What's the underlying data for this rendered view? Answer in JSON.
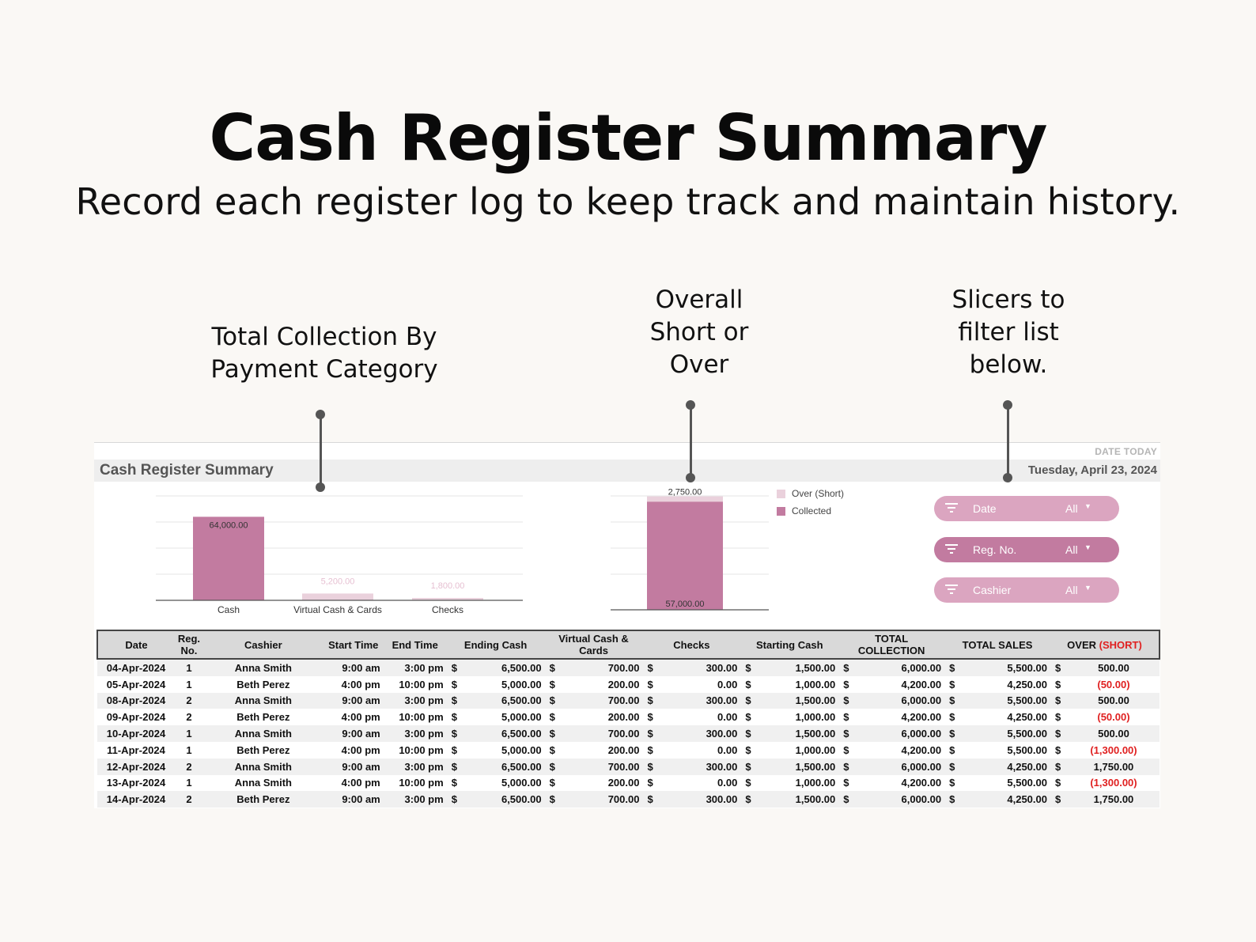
{
  "hero": {
    "title": "Cash Register Summary",
    "subtitle": "Record each register log to keep track and maintain history."
  },
  "callouts": {
    "collection": [
      "Total Collection By",
      "Payment Category"
    ],
    "overall": [
      "Overall",
      "Short or",
      "Over"
    ],
    "slicers": [
      "Slicers to",
      "filter list",
      "below."
    ]
  },
  "sheet": {
    "title": "Cash Register Summary",
    "date_caption": "DATE TODAY",
    "date_value": "Tuesday, April 23, 2024"
  },
  "colors": {
    "collected": "#c27ba0",
    "over_short": "#ead1dc",
    "light_bar": "#ead1dc",
    "slicer_light": "#dba5c0",
    "slicer_dark": "#c27ba0",
    "negative": "#e02020"
  },
  "chart_data": [
    {
      "type": "bar",
      "title": "",
      "categories": [
        "Cash",
        "Virtual Cash & Cards",
        "Checks"
      ],
      "values": [
        64000,
        5200,
        1800
      ],
      "value_labels": [
        "64,000.00",
        "5,200.00",
        "1,800.00"
      ],
      "ylim": [
        0,
        80000
      ],
      "grid": true
    },
    {
      "type": "bar",
      "stacked": true,
      "title": "",
      "categories": [
        ""
      ],
      "series": [
        {
          "name": "Collected",
          "values": [
            57000
          ],
          "label": "57,000.00"
        },
        {
          "name": "Over (Short)",
          "values": [
            2750
          ],
          "label": "2,750.00"
        }
      ],
      "ylim": [
        0,
        60000
      ],
      "legend": "right",
      "grid": true
    }
  ],
  "slicers": [
    {
      "label": "Date",
      "value": "All",
      "icon": "filter-icon"
    },
    {
      "label": "Reg. No.",
      "value": "All",
      "icon": "filter-icon"
    },
    {
      "label": "Cashier",
      "value": "All",
      "icon": "filter-icon"
    }
  ],
  "table": {
    "headers": {
      "date": "Date",
      "reg": "Reg. No.",
      "cashier": "Cashier",
      "start": "Start Time",
      "end": "End Time",
      "ending_cash": "Ending Cash",
      "virtual": "Virtual Cash & Cards",
      "checks": "Checks",
      "starting_cash": "Starting Cash",
      "total_collection": "TOTAL COLLECTION",
      "total_sales": "TOTAL SALES",
      "over": "OVER",
      "short": "(SHORT)"
    },
    "currency": "$",
    "rows": [
      {
        "date": "04-Apr-2024",
        "reg": "1",
        "cashier": "Anna Smith",
        "start": "9:00 am",
        "end": "3:00 pm",
        "ending": "6,500.00",
        "virtual": "700.00",
        "checks": "300.00",
        "starting": "1,500.00",
        "collection": "6,000.00",
        "sales": "5,500.00",
        "over": "500.00",
        "neg": false
      },
      {
        "date": "05-Apr-2024",
        "reg": "1",
        "cashier": "Beth Perez",
        "start": "4:00 pm",
        "end": "10:00 pm",
        "ending": "5,000.00",
        "virtual": "200.00",
        "checks": "0.00",
        "starting": "1,000.00",
        "collection": "4,200.00",
        "sales": "4,250.00",
        "over": "(50.00)",
        "neg": true
      },
      {
        "date": "08-Apr-2024",
        "reg": "2",
        "cashier": "Anna Smith",
        "start": "9:00 am",
        "end": "3:00 pm",
        "ending": "6,500.00",
        "virtual": "700.00",
        "checks": "300.00",
        "starting": "1,500.00",
        "collection": "6,000.00",
        "sales": "5,500.00",
        "over": "500.00",
        "neg": false
      },
      {
        "date": "09-Apr-2024",
        "reg": "2",
        "cashier": "Beth Perez",
        "start": "4:00 pm",
        "end": "10:00 pm",
        "ending": "5,000.00",
        "virtual": "200.00",
        "checks": "0.00",
        "starting": "1,000.00",
        "collection": "4,200.00",
        "sales": "4,250.00",
        "over": "(50.00)",
        "neg": true
      },
      {
        "date": "10-Apr-2024",
        "reg": "1",
        "cashier": "Anna Smith",
        "start": "9:00 am",
        "end": "3:00 pm",
        "ending": "6,500.00",
        "virtual": "700.00",
        "checks": "300.00",
        "starting": "1,500.00",
        "collection": "6,000.00",
        "sales": "5,500.00",
        "over": "500.00",
        "neg": false
      },
      {
        "date": "11-Apr-2024",
        "reg": "1",
        "cashier": "Beth Perez",
        "start": "4:00 pm",
        "end": "10:00 pm",
        "ending": "5,000.00",
        "virtual": "200.00",
        "checks": "0.00",
        "starting": "1,000.00",
        "collection": "4,200.00",
        "sales": "5,500.00",
        "over": "(1,300.00)",
        "neg": true
      },
      {
        "date": "12-Apr-2024",
        "reg": "2",
        "cashier": "Anna Smith",
        "start": "9:00 am",
        "end": "3:00 pm",
        "ending": "6,500.00",
        "virtual": "700.00",
        "checks": "300.00",
        "starting": "1,500.00",
        "collection": "6,000.00",
        "sales": "4,250.00",
        "over": "1,750.00",
        "neg": false
      },
      {
        "date": "13-Apr-2024",
        "reg": "1",
        "cashier": "Anna Smith",
        "start": "4:00 pm",
        "end": "10:00 pm",
        "ending": "5,000.00",
        "virtual": "200.00",
        "checks": "0.00",
        "starting": "1,000.00",
        "collection": "4,200.00",
        "sales": "5,500.00",
        "over": "(1,300.00)",
        "neg": true
      },
      {
        "date": "14-Apr-2024",
        "reg": "2",
        "cashier": "Beth Perez",
        "start": "9:00 am",
        "end": "3:00 pm",
        "ending": "6,500.00",
        "virtual": "700.00",
        "checks": "300.00",
        "starting": "1,500.00",
        "collection": "6,000.00",
        "sales": "4,250.00",
        "over": "1,750.00",
        "neg": false
      }
    ]
  }
}
